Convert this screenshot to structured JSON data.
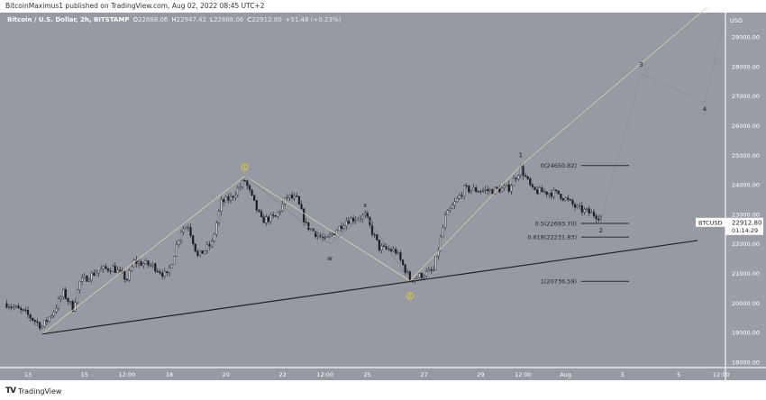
{
  "header": {
    "published": "BitcoinMaximus1 published on TradingView.com, Aug 02, 2022 08:45 UTC+2"
  },
  "legend": {
    "symbol": "Bitcoin / U.S. Dollar, 2h, BITSTAMP",
    "o_label": "O",
    "o": "22888.06",
    "h_label": "H",
    "h": "22947.42",
    "l_label": "L",
    "l": "22888.06",
    "c_label": "C",
    "c": "22912.80",
    "change": "+51.48 (+0.23%)"
  },
  "price_label": {
    "ticker": "BTCUSD",
    "price": "22912.80",
    "countdown": "01:14:29"
  },
  "footer": {
    "brand": "TradingView"
  },
  "colors": {
    "background": "#969aa3",
    "candle": "#1e1f24",
    "trendline": "#222222",
    "wave_line": "#d8d2a8",
    "circle_label": "#f2d51c"
  },
  "chart_data": {
    "type": "candlestick",
    "interval": "2h",
    "currency": "USD",
    "ylim": [
      18000,
      29500
    ],
    "y_ticks": [
      "29000.00",
      "28000.00",
      "27000.00",
      "26000.00",
      "25000.00",
      "24000.00",
      "23000.00",
      "22000.00",
      "21000.00",
      "20000.00",
      "19000.00",
      "18000.00"
    ],
    "y_tick_values": [
      29000,
      28000,
      27000,
      26000,
      25000,
      24000,
      23000,
      22000,
      21000,
      20000,
      19000,
      18000
    ],
    "x_ticks": [
      {
        "t": "2022-07-13T00:00",
        "label": "13"
      },
      {
        "t": "2022-07-15T00:00",
        "label": "15"
      },
      {
        "t": "2022-07-16T12:00",
        "label": "12:00"
      },
      {
        "t": "2022-07-18T00:00",
        "label": "18"
      },
      {
        "t": "2022-07-20T00:00",
        "label": "20"
      },
      {
        "t": "2022-07-22T00:00",
        "label": "22"
      },
      {
        "t": "2022-07-23T12:00",
        "label": "12:00"
      },
      {
        "t": "2022-07-25T00:00",
        "label": "25"
      },
      {
        "t": "2022-07-27T00:00",
        "label": "27"
      },
      {
        "t": "2022-07-29T00:00",
        "label": "29"
      },
      {
        "t": "2022-07-30T12:00",
        "label": "12:00"
      },
      {
        "t": "2022-08-01T00:00",
        "label": "Aug"
      },
      {
        "t": "2022-08-03T00:00",
        "label": "3"
      },
      {
        "t": "2022-08-05T00:00",
        "label": "5"
      },
      {
        "t": "2022-08-06T12:00",
        "label": "12:00"
      }
    ],
    "price_path": [
      [
        "2022-07-12T06:00",
        19980
      ],
      [
        "2022-07-12T22:00",
        19650
      ],
      [
        "2022-07-13T12:00",
        19200
      ],
      [
        "2022-07-13T22:00",
        19740
      ],
      [
        "2022-07-14T06:00",
        20350
      ],
      [
        "2022-07-14T14:00",
        19830
      ],
      [
        "2022-07-14T20:00",
        20710
      ],
      [
        "2022-07-15T12:00",
        21100
      ],
      [
        "2022-07-16T00:00",
        21200
      ],
      [
        "2022-07-16T12:00",
        20800
      ],
      [
        "2022-07-16T18:00",
        21400
      ],
      [
        "2022-07-17T10:00",
        21260
      ],
      [
        "2022-07-17T22:00",
        20900
      ],
      [
        "2022-07-18T10:00",
        22480
      ],
      [
        "2022-07-18T16:00",
        22630
      ],
      [
        "2022-07-19T00:00",
        21570
      ],
      [
        "2022-07-19T12:00",
        22020
      ],
      [
        "2022-07-19T20:00",
        23400
      ],
      [
        "2022-07-20T04:00",
        23550
      ],
      [
        "2022-07-20T16:00",
        24150
      ],
      [
        "2022-07-20T22:00",
        23550
      ],
      [
        "2022-07-21T06:00",
        22800
      ],
      [
        "2022-07-21T18:00",
        22900
      ],
      [
        "2022-07-22T04:00",
        23600
      ],
      [
        "2022-07-22T12:00",
        23500
      ],
      [
        "2022-07-22T20:00",
        22630
      ],
      [
        "2022-07-23T12:00",
        22100
      ],
      [
        "2022-07-24T06:00",
        22800
      ],
      [
        "2022-07-24T22:00",
        22950
      ],
      [
        "2022-07-25T10:00",
        21870
      ],
      [
        "2022-07-26T00:00",
        21750
      ],
      [
        "2022-07-26T12:00",
        20800
      ],
      [
        "2022-07-27T08:00",
        21100
      ],
      [
        "2022-07-27T18:00",
        22900
      ],
      [
        "2022-07-28T10:00",
        23850
      ],
      [
        "2022-07-29T08:00",
        23800
      ],
      [
        "2022-07-30T00:00",
        23900
      ],
      [
        "2022-07-30T10:00",
        24550
      ],
      [
        "2022-07-30T20:00",
        23800
      ],
      [
        "2022-07-31T18:00",
        23700
      ],
      [
        "2022-08-01T10:00",
        23200
      ],
      [
        "2022-08-02T06:00",
        22912.8
      ]
    ],
    "fib_levels": [
      {
        "label": "0(24650.82)",
        "price": 24650.82
      },
      {
        "label": "0.5(22693.70)",
        "price": 22693.7
      },
      {
        "label": "0.618(22231.83)",
        "price": 22231.83
      },
      {
        "label": "1(20736.59)",
        "price": 20736.59
      }
    ],
    "trendline": [
      [
        "2022-07-13T12:00",
        18950
      ],
      [
        "2022-08-05T16:00",
        22115
      ]
    ],
    "wave_labels": [
      {
        "label": "1",
        "t": "2022-07-20T16:00",
        "price": 24600,
        "style": "circle"
      },
      {
        "label": "w",
        "t": "2022-07-23T16:00",
        "price": 21500,
        "style": "plain"
      },
      {
        "label": "x",
        "t": "2022-07-24T22:00",
        "price": 23300,
        "style": "plain"
      },
      {
        "label": "y",
        "t": "2022-07-26T12:00",
        "price": 20720,
        "style": "small"
      },
      {
        "label": "2",
        "t": "2022-07-26T12:00",
        "price": 20300,
        "style": "circle"
      },
      {
        "label": "1",
        "t": "2022-07-30T10:00",
        "price": 25000,
        "style": "plain"
      },
      {
        "label": "2",
        "t": "2022-08-02T06:00",
        "price": 22450,
        "style": "plain"
      },
      {
        "label": "3",
        "t": "2022-08-03T16:00",
        "price": 28050,
        "style": "plain"
      },
      {
        "label": "4",
        "t": "2022-08-05T22:00",
        "price": 26550,
        "style": "plain"
      }
    ],
    "projection": [
      [
        "2022-08-02T06:00",
        22850
      ],
      [
        "2022-08-03T16:00",
        27750
      ],
      [
        "2022-08-05T22:00",
        26800
      ],
      [
        "2022-08-06T14:00",
        29500
      ]
    ],
    "wave_lines": [
      [
        [
          "2022-07-13T12:00",
          18950
        ],
        [
          "2022-07-20T16:00",
          24300
        ]
      ],
      [
        [
          "2022-07-20T16:00",
          24300
        ],
        [
          "2022-07-26T12:00",
          20750
        ]
      ],
      [
        [
          "2022-07-26T12:00",
          20750
        ],
        [
          "2022-07-30T10:00",
          24650
        ],
        [
          "2022-08-06T00:00",
          30000
        ]
      ]
    ],
    "subwave_lines": [
      [
        "2022-07-20T16:00",
        24300
      ],
      [
        "2022-07-23T16:00",
        22000
      ],
      [
        "2022-07-24T22:00",
        23000
      ],
      [
        "2022-07-26T12:00",
        20750
      ]
    ]
  }
}
